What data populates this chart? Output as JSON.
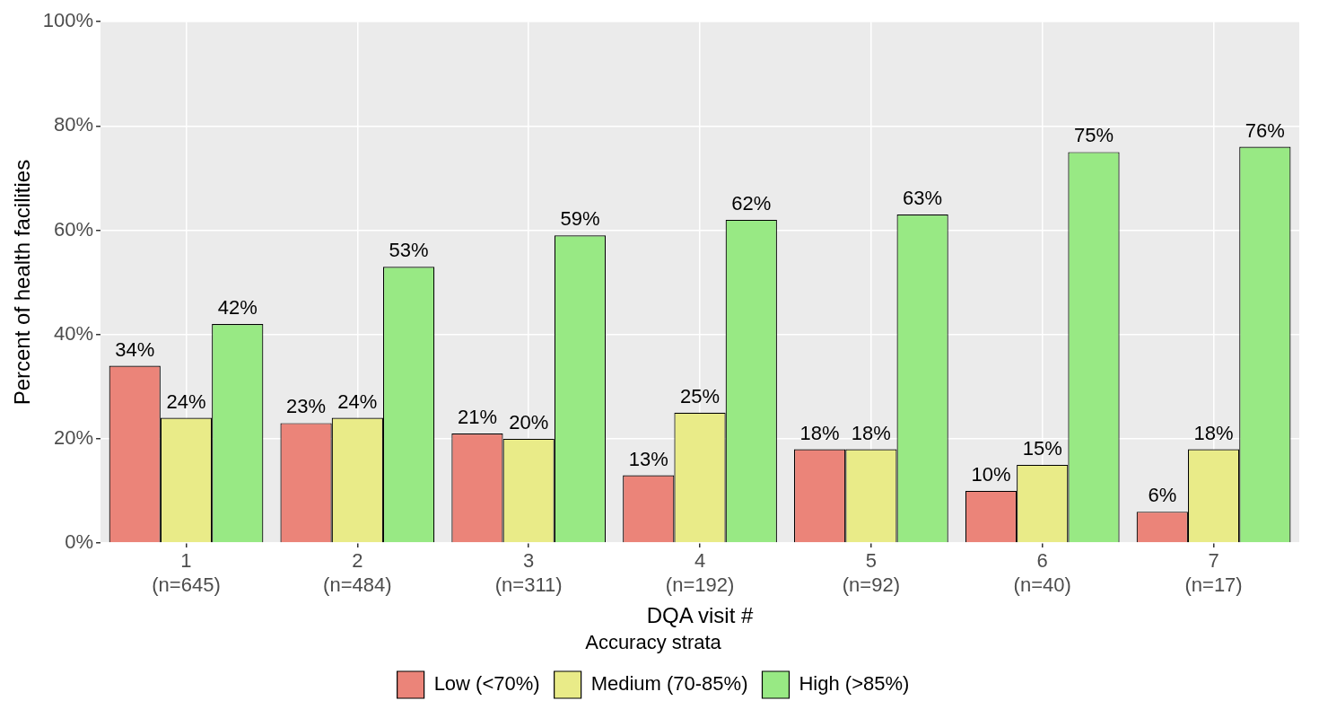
{
  "chart_data": {
    "type": "bar",
    "xlabel": "DQA visit #",
    "ylabel": "Percent of health facilities",
    "legend_title": "Accuracy strata",
    "categories": [
      "1\n(n=645)",
      "2\n(n=484)",
      "3\n(n=311)",
      "4\n(n=192)",
      "5\n(n=92)",
      "6\n(n=40)",
      "7\n(n=17)"
    ],
    "series": [
      {
        "name": "Low (<70%)",
        "color": "#eb8479",
        "values": [
          34,
          23,
          21,
          13,
          18,
          10,
          6
        ],
        "value_labels": [
          "34%",
          "23%",
          "21%",
          "13%",
          "18%",
          "10%",
          "6%"
        ]
      },
      {
        "name": "Medium (70-85%)",
        "color": "#e9eb88",
        "values": [
          24,
          24,
          20,
          25,
          18,
          15,
          18
        ],
        "value_labels": [
          "24%",
          "24%",
          "20%",
          "25%",
          "18%",
          "15%",
          "18%"
        ]
      },
      {
        "name": "High (>85%)",
        "color": "#98e984",
        "values": [
          42,
          53,
          59,
          62,
          63,
          75,
          76
        ],
        "value_labels": [
          "42%",
          "53%",
          "59%",
          "62%",
          "63%",
          "75%",
          "76%"
        ]
      }
    ],
    "ylim": [
      0,
      100
    ],
    "yticks": [
      {
        "value": 0,
        "label": "0%"
      },
      {
        "value": 20,
        "label": "20%"
      },
      {
        "value": 40,
        "label": "40%"
      },
      {
        "value": 60,
        "label": "60%"
      },
      {
        "value": 80,
        "label": "80%"
      },
      {
        "value": 100,
        "label": "100%"
      }
    ],
    "grid": true,
    "legend": "bottom"
  }
}
